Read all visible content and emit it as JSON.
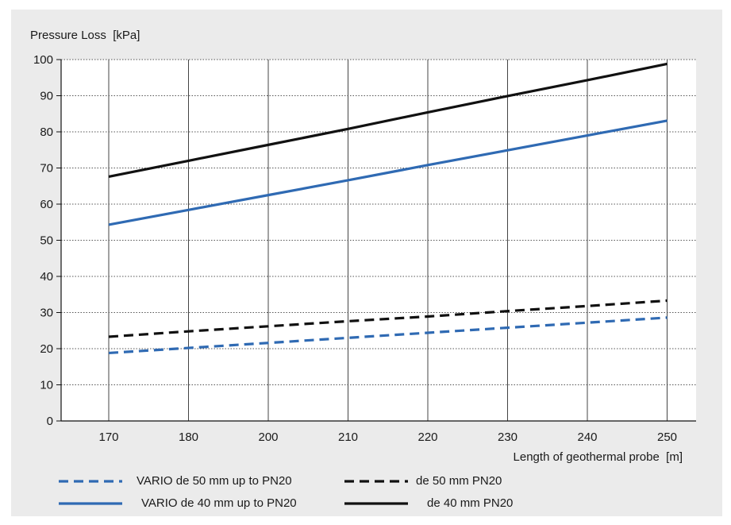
{
  "chart_data": {
    "type": "line",
    "ylabel": "Pressure Loss  [kPa]",
    "xlabel": "Length of geothermal probe  [m]",
    "x": [
      170,
      180,
      200,
      210,
      220,
      230,
      240,
      250
    ],
    "ylim": [
      0,
      100
    ],
    "yticks": [
      0,
      10,
      20,
      30,
      40,
      50,
      60,
      70,
      80,
      90,
      100
    ],
    "grid": true,
    "legend_position": "bottom",
    "series": [
      {
        "name": "VARIO de 50 mm up to PN20",
        "values": [
          18.8,
          20.2,
          21.6,
          23.0,
          24.4,
          25.8,
          27.2,
          28.6
        ],
        "color": "#2f6ab3",
        "dash": true
      },
      {
        "name": "de 50 mm PN20",
        "values": [
          23.3,
          24.8,
          26.2,
          27.6,
          28.9,
          30.4,
          31.8,
          33.3
        ],
        "color": "#111111",
        "dash": true
      },
      {
        "name": "VARIO de 40 mm up to PN20",
        "values": [
          54.3,
          58.4,
          62.5,
          66.6,
          70.8,
          74.9,
          79.0,
          83.1
        ],
        "color": "#2f6ab3",
        "dash": false
      },
      {
        "name": "de 40 mm PN20",
        "values": [
          67.6,
          72.0,
          76.4,
          80.8,
          85.4,
          89.9,
          94.3,
          98.8
        ],
        "color": "#111111",
        "dash": false
      }
    ]
  }
}
